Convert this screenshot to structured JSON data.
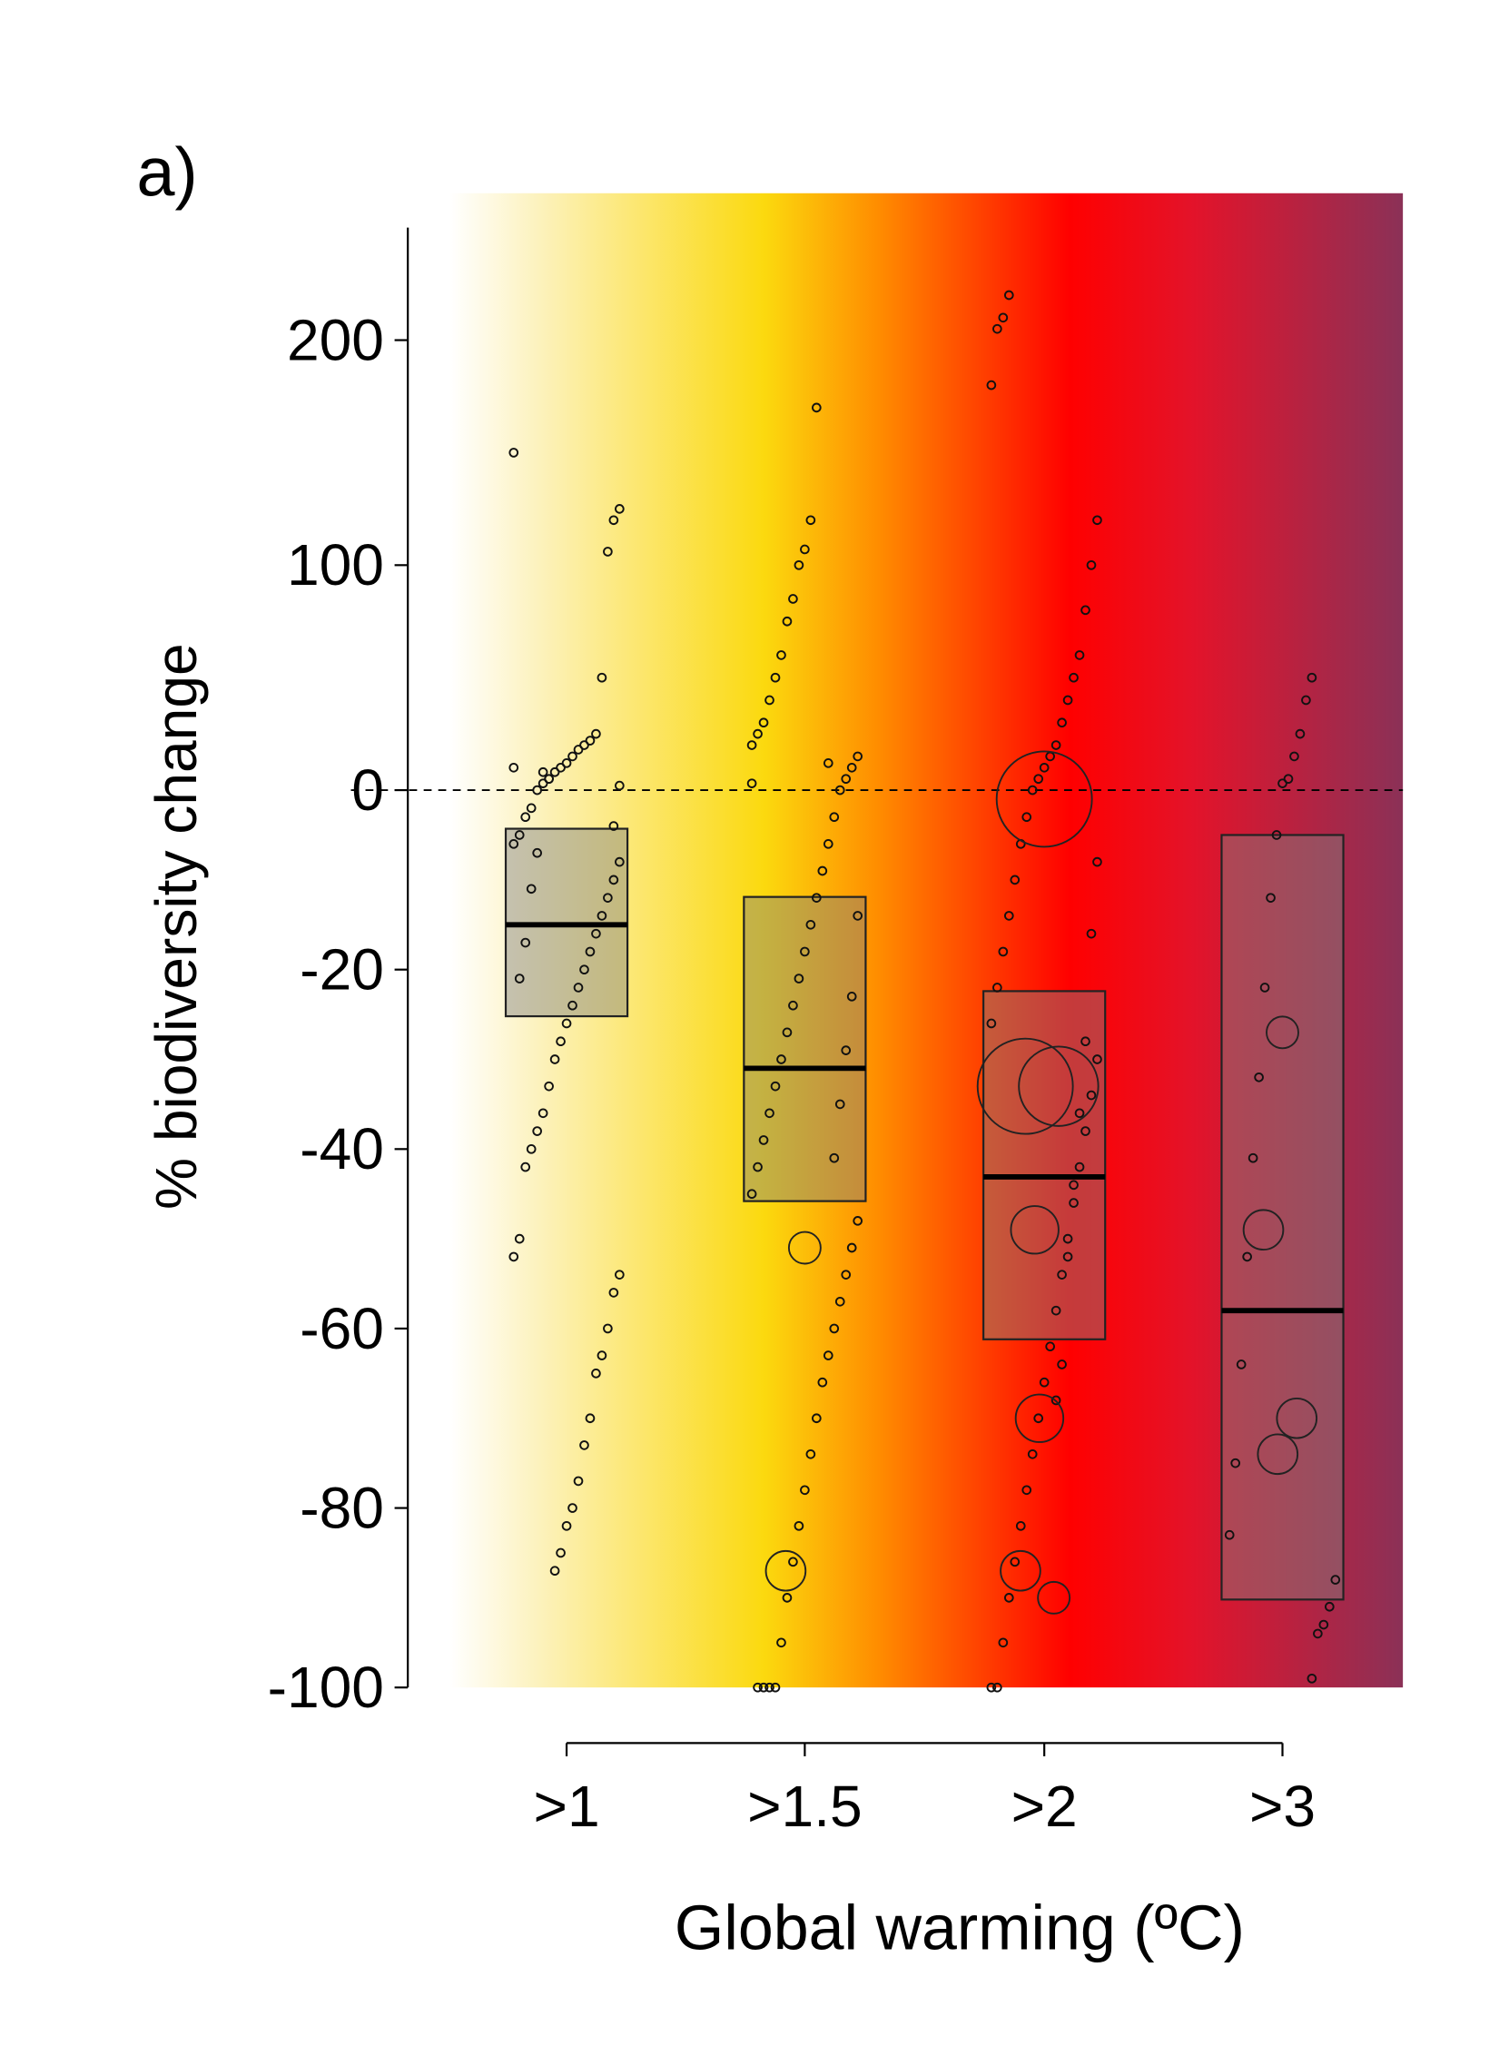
{
  "chart_data": {
    "type": "box",
    "panel_label": "a)",
    "y_label": "% biodiversity change",
    "x_label": "Global warming (ºC)",
    "categories": [
      ">1",
      ">1.5",
      ">2",
      ">3"
    ],
    "ylim": [
      -100,
      250
    ],
    "yticks": [
      -100,
      -80,
      -60,
      -40,
      -20,
      0,
      100,
      200
    ],
    "reference_line": 0,
    "boxes": [
      {
        "q3": -4.3,
        "median": -15,
        "q1": -25.2
      },
      {
        "q3": -11.9,
        "median": -31,
        "q1": -45.8
      },
      {
        "q3": -22.4,
        "median": -43.1,
        "q1": -61.2
      },
      {
        "q3": -5,
        "median": -58,
        "q1": -90.2
      }
    ],
    "points": [
      [
        150,
        125,
        120,
        106,
        50,
        25,
        22,
        20,
        18,
        15,
        12,
        10,
        8,
        5,
        3,
        0,
        -2,
        -3,
        -5,
        -6,
        -8,
        -10,
        -12,
        -14,
        -16,
        -18,
        -20,
        -22,
        -24,
        -26,
        -28,
        -30,
        -33,
        -36,
        -38,
        -40,
        -42,
        -50,
        -52,
        -54,
        -56,
        -60,
        -63,
        -65,
        -70,
        -73,
        -77,
        -80,
        -82,
        -85,
        -87,
        5,
        8,
        -7,
        -11,
        -17,
        -21,
        10,
        2,
        -4
      ],
      [
        170,
        120,
        107,
        100,
        85,
        75,
        60,
        50,
        40,
        30,
        25,
        20,
        15,
        10,
        5,
        0,
        -3,
        -6,
        -9,
        -12,
        -15,
        -18,
        -21,
        -24,
        -27,
        -30,
        -33,
        -36,
        -39,
        -42,
        -45,
        -48,
        -51,
        -54,
        -57,
        -60,
        -63,
        -66,
        -70,
        -74,
        -78,
        -82,
        -86,
        -90,
        -95,
        -100,
        -100,
        -100,
        -100,
        3,
        -14,
        -23,
        -29,
        -35,
        -41,
        12
      ],
      [
        220,
        210,
        205,
        180,
        120,
        100,
        80,
        60,
        50,
        40,
        30,
        20,
        15,
        10,
        5,
        0,
        -3,
        -6,
        -10,
        -14,
        -18,
        -22,
        -26,
        -30,
        -34,
        -38,
        -42,
        -46,
        -50,
        -54,
        -58,
        -62,
        -66,
        -70,
        -74,
        -78,
        -82,
        -86,
        -90,
        -95,
        -100,
        -100,
        -8,
        -16,
        -28,
        -36,
        -44,
        -52,
        -64,
        -68
      ],
      [
        50,
        40,
        25,
        15,
        5,
        3,
        -5,
        -12,
        -22,
        -32,
        -41,
        -52,
        -64,
        -75,
        -83,
        -88,
        -91,
        -93,
        -94,
        -99
      ]
    ],
    "bubbles": [
      [],
      [
        {
          "value": -51,
          "size": 2
        },
        {
          "value": -87,
          "size": 2.5
        }
      ],
      [
        {
          "value": -1,
          "size": 6
        },
        {
          "value": -33,
          "size": 6
        },
        {
          "value": -33,
          "size": 5
        },
        {
          "value": -70,
          "size": 3
        },
        {
          "value": -87,
          "size": 2.5
        },
        {
          "value": -90,
          "size": 2
        },
        {
          "value": -49,
          "size": 3
        }
      ],
      [
        {
          "value": -27,
          "size": 2
        },
        {
          "value": -49,
          "size": 2.5
        },
        {
          "value": -70,
          "size": 2.5
        },
        {
          "value": -74,
          "size": 2.5
        }
      ]
    ]
  }
}
